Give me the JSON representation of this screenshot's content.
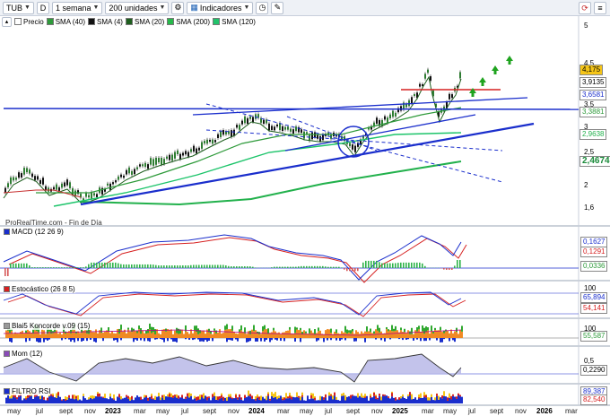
{
  "toolbar": {
    "ticker": "TUB",
    "d_label": "D",
    "timeframe": "1 semana",
    "units": "200 unidades",
    "indicators": "Indicadores"
  },
  "legend": {
    "items": [
      {
        "label": "Precio",
        "color": "#ffffff"
      },
      {
        "label": "SMA (40)",
        "color": "#2e9a3a"
      },
      {
        "label": "SMA (4)",
        "color": "#111111"
      },
      {
        "label": "SMA (20)",
        "color": "#1d5e1d"
      },
      {
        "label": "SMA (200)",
        "color": "#26b94a"
      },
      {
        "label": "SMA (120)",
        "color": "#21c36b"
      }
    ]
  },
  "price_axis": {
    "ticks": [
      "5",
      "4,5",
      "3,5",
      "3",
      "2,5",
      "2",
      "1,6"
    ],
    "tags": [
      {
        "text": "4,175",
        "bg": "#f5c518"
      },
      {
        "text": "3,9135",
        "bg": "#ffffff"
      },
      {
        "text": "3,6581",
        "bg": "#ffffff"
      },
      {
        "text": "3,3881",
        "bg": "#ffffff"
      },
      {
        "text": "2,9638",
        "bg": "#ffffff"
      },
      {
        "text": "2,4674",
        "bg": "#ffffff"
      }
    ]
  },
  "watermark": "ProRealTime.com - Fin de Día",
  "panels": {
    "macd": {
      "label": "MACD (12 26 9)",
      "tags": [
        "0,1627",
        "0,1291",
        "0,0336"
      ]
    },
    "stoch": {
      "label": "Estocástico (26 8 5)",
      "top": "100",
      "tags": [
        "65,894",
        "54,141"
      ]
    },
    "blai5": {
      "label": "Blai5 Koncorde v.09 (15)",
      "top": "100",
      "tags": [
        "55,587"
      ]
    },
    "mom": {
      "label": "Mom (12)",
      "top": "0,5",
      "tags": [
        "0,2290"
      ]
    },
    "filtro": {
      "label": "FILTRO RSI",
      "tags": [
        "89,387",
        "82,540"
      ]
    }
  },
  "time_axis": {
    "labels": [
      {
        "text": "may",
        "year": false
      },
      {
        "text": "jul",
        "year": false
      },
      {
        "text": "sept",
        "year": false
      },
      {
        "text": "nov",
        "year": false
      },
      {
        "text": "2023",
        "year": true
      },
      {
        "text": "mar",
        "year": false
      },
      {
        "text": "may",
        "year": false
      },
      {
        "text": "jul",
        "year": false
      },
      {
        "text": "sept",
        "year": false
      },
      {
        "text": "nov",
        "year": false
      },
      {
        "text": "2024",
        "year": true
      },
      {
        "text": "mar",
        "year": false
      },
      {
        "text": "may",
        "year": false
      },
      {
        "text": "jul",
        "year": false
      },
      {
        "text": "sept",
        "year": false
      },
      {
        "text": "nov",
        "year": false
      },
      {
        "text": "2025",
        "year": true
      },
      {
        "text": "mar",
        "year": false
      },
      {
        "text": "may",
        "year": false
      },
      {
        "text": "jul",
        "year": false
      },
      {
        "text": "sept",
        "year": false
      },
      {
        "text": "nov",
        "year": false
      },
      {
        "text": "2026",
        "year": true
      },
      {
        "text": "mar",
        "year": false
      }
    ]
  },
  "colors": {
    "candle_up": "#2e7d32",
    "candle_down": "#111111",
    "trend_blue": "#1a2ecc",
    "sma200": "#22b14c",
    "sma120": "#1cc46a",
    "resistance_red": "#d62020",
    "arrow_green": "#1fa31f"
  }
}
